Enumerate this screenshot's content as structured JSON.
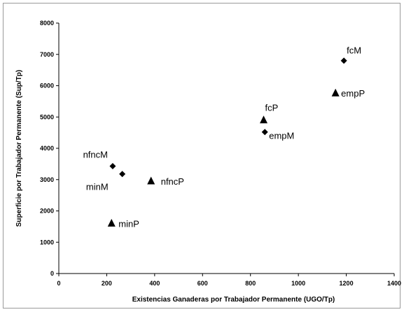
{
  "chart_data": {
    "type": "scatter",
    "title": "",
    "xlabel": "Existencias Ganaderas por Trabajador Permanente (UGO/Tp)",
    "ylabel": "Superficie por Trabajador Permanente (Sup/Tp)",
    "xlim": [
      0,
      1400
    ],
    "ylim": [
      0,
      8000
    ],
    "xticks": [
      "0",
      "200",
      "400",
      "600",
      "800",
      "1000",
      "1200",
      "1400"
    ],
    "yticks": [
      "0",
      "1000",
      "2000",
      "3000",
      "4000",
      "5000",
      "6000",
      "7000",
      "8000"
    ],
    "grid": false,
    "legend": "none",
    "points": [
      {
        "label": "fcM",
        "x": 1190,
        "y": 6800,
        "marker": "diamond"
      },
      {
        "label": "empP",
        "x": 1155,
        "y": 5760,
        "marker": "triangle"
      },
      {
        "label": "fcP",
        "x": 855,
        "y": 4900,
        "marker": "triangle"
      },
      {
        "label": "empM",
        "x": 860,
        "y": 4520,
        "marker": "diamond"
      },
      {
        "label": "nfncM",
        "x": 225,
        "y": 3430,
        "marker": "diamond"
      },
      {
        "label": "minM",
        "x": 265,
        "y": 3180,
        "marker": "diamond"
      },
      {
        "label": "nfncP",
        "x": 385,
        "y": 2950,
        "marker": "triangle"
      },
      {
        "label": "minP",
        "x": 220,
        "y": 1600,
        "marker": "triangle"
      }
    ]
  }
}
